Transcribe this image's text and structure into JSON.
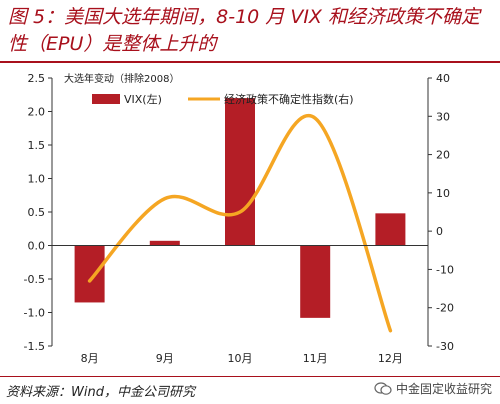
{
  "title": "图 5：美国大选年期间，8-10 月 VIX 和经济政策不确定性（EPU）是整体上升的",
  "source": "资料来源：Wind，中金公司研究",
  "logo_text": "中金固定收益研究",
  "colors": {
    "bar": "#b41e26",
    "line": "#f5a623",
    "title": "#a8101c"
  },
  "chart_data": {
    "type": "bar",
    "note": "大选年变动（排除2008）",
    "categories": [
      "8月",
      "9月",
      "10月",
      "11月",
      "12月"
    ],
    "series": [
      {
        "name": "VIX(左)",
        "type": "bar",
        "axis": "left",
        "values": [
          -0.85,
          0.07,
          2.2,
          -1.08,
          0.48
        ]
      },
      {
        "name": "经济政策不确定性指数(右)",
        "type": "line",
        "axis": "right",
        "values": [
          -13,
          8.5,
          5,
          29.5,
          -26
        ]
      }
    ],
    "y_left": {
      "min": -1.5,
      "max": 2.5,
      "ticks": [
        "-1.5",
        "-1.0",
        "-0.5",
        "0.0",
        "0.5",
        "1.0",
        "1.5",
        "2.0",
        "2.5"
      ]
    },
    "y_right": {
      "min": -30,
      "max": 40,
      "ticks": [
        "-30",
        "-20",
        "-10",
        "0",
        "10",
        "20",
        "30",
        "40"
      ]
    },
    "grid": false,
    "legend": "top"
  }
}
